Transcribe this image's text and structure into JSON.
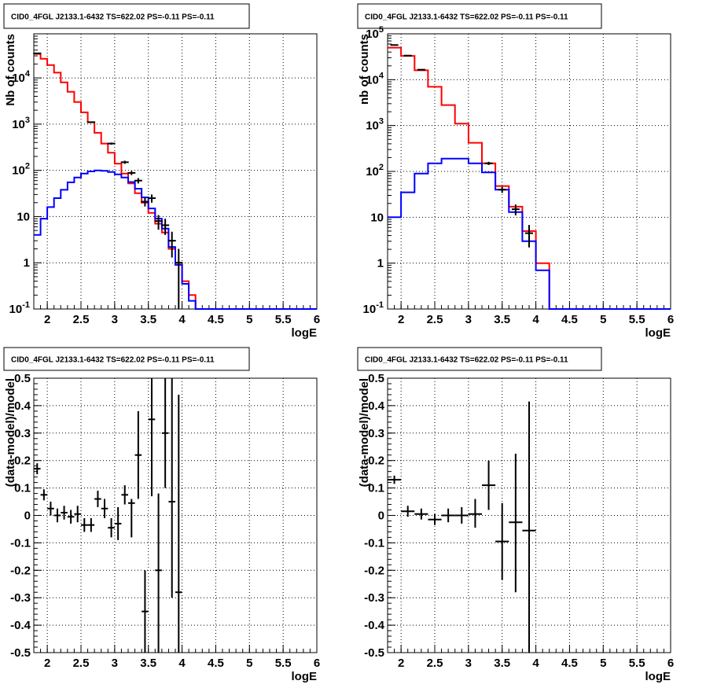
{
  "chart_data": [
    {
      "type": "line",
      "title": "CID0_4FGL J2133.1-6432 TS=622.02 PS=-0.11 PS=-0.11",
      "xlabel": "logE",
      "ylabel": "Nb of counts",
      "xlim": [
        1.8,
        6
      ],
      "ylim": [
        0.1,
        90000
      ],
      "y_scale": "log",
      "grid": true,
      "x_ticks": [
        "2",
        "2.5",
        "3",
        "3.5",
        "4",
        "4.5",
        "5",
        "5.5",
        "6"
      ],
      "y_ticks": [
        {
          "v": 0.1,
          "l": "10^-1"
        },
        {
          "v": 1,
          "l": "1"
        },
        {
          "v": 10,
          "l": "10"
        },
        {
          "v": 100,
          "l": "10^2"
        },
        {
          "v": 1000,
          "l": "10^3"
        },
        {
          "v": 10000,
          "l": "10^4"
        }
      ],
      "bin_edges": [
        1.8,
        1.9,
        2.0,
        2.1,
        2.2,
        2.3,
        2.4,
        2.5,
        2.6,
        2.7,
        2.8,
        2.9,
        3.0,
        3.1,
        3.2,
        3.3,
        3.4,
        3.5,
        3.6,
        3.7,
        3.8,
        3.9,
        4.0,
        4.1,
        4.2,
        4.3,
        4.4,
        4.5,
        4.6,
        4.7,
        4.8,
        4.9,
        5.0,
        5.1,
        5.2,
        5.3,
        5.4,
        5.5,
        5.6,
        5.7,
        5.8,
        5.9,
        6.0
      ],
      "series": [
        {
          "color": "#ff0000",
          "values": [
            33000,
            26000,
            19000,
            13000,
            8000,
            5000,
            3000,
            1800,
            1100,
            650,
            380,
            240,
            140,
            85,
            52,
            32,
            20,
            12,
            7,
            4.5,
            2,
            1,
            0.4,
            0.2,
            0.1,
            0.1,
            0.1,
            0.1,
            0.1,
            0.1,
            0.1,
            0.1,
            0.1,
            0.1,
            0.1,
            0.1,
            0.1,
            0.1,
            0.1,
            0.1,
            0.1,
            0.1
          ]
        },
        {
          "color": "#0000ff",
          "values": [
            4,
            9,
            16,
            25,
            38,
            55,
            70,
            85,
            95,
            100,
            98,
            92,
            82,
            70,
            56,
            40,
            26,
            15,
            9,
            5.5,
            2.2,
            0.9,
            0.35,
            0.15,
            0.1,
            0.1,
            0.1,
            0.1,
            0.1,
            0.1,
            0.1,
            0.1,
            0.1,
            0.1,
            0.1,
            0.1,
            0.1,
            0.1,
            0.1,
            0.1,
            0.1,
            0.1
          ]
        }
      ],
      "data_points": [
        {
          "x": 1.85,
          "y": 34000,
          "elo": 33800,
          "ehi": 34200
        },
        {
          "x": 2.65,
          "y": 1100,
          "elo": 1070,
          "ehi": 1130
        },
        {
          "x": 2.95,
          "y": 380,
          "elo": 360,
          "ehi": 400
        },
        {
          "x": 3.15,
          "y": 150,
          "elo": 138,
          "ehi": 162
        },
        {
          "x": 3.25,
          "y": 88,
          "elo": 79,
          "ehi": 97
        },
        {
          "x": 3.35,
          "y": 60,
          "elo": 52,
          "ehi": 68
        },
        {
          "x": 3.45,
          "y": 21,
          "elo": 16.5,
          "ehi": 25.5
        },
        {
          "x": 3.55,
          "y": 25,
          "elo": 20,
          "ehi": 30
        },
        {
          "x": 3.65,
          "y": 8,
          "elo": 5.2,
          "ehi": 10.8
        },
        {
          "x": 3.75,
          "y": 6.5,
          "elo": 4,
          "ehi": 9
        },
        {
          "x": 3.85,
          "y": 3,
          "elo": 1.3,
          "ehi": 4.7
        },
        {
          "x": 3.95,
          "y": 1,
          "elo": 0.1,
          "ehi": 2
        }
      ]
    },
    {
      "type": "line",
      "title": "CID0_4FGL J2133.1-6432 TS=622.02 PS=-0.11 PS=-0.11",
      "xlabel": "logE",
      "ylabel": "nb of counts",
      "xlim": [
        1.8,
        6
      ],
      "ylim": [
        0.1,
        100000
      ],
      "y_scale": "log",
      "grid": true,
      "x_ticks": [
        "2",
        "2.5",
        "3",
        "3.5",
        "4",
        "4.5",
        "5",
        "5.5",
        "6"
      ],
      "y_ticks": [
        {
          "v": 0.1,
          "l": "10^-1"
        },
        {
          "v": 1,
          "l": "1"
        },
        {
          "v": 10,
          "l": "10"
        },
        {
          "v": 100,
          "l": "10^2"
        },
        {
          "v": 1000,
          "l": "10^3"
        },
        {
          "v": 10000,
          "l": "10^4"
        },
        {
          "v": 100000,
          "l": "10^5"
        }
      ],
      "bin_edges": [
        1.8,
        2.0,
        2.2,
        2.4,
        2.6,
        2.8,
        3.0,
        3.2,
        3.4,
        3.6,
        3.8,
        4.0,
        4.2,
        4.4,
        4.6,
        4.8,
        5.0,
        5.2,
        5.4,
        5.6,
        5.8,
        6.0
      ],
      "series": [
        {
          "color": "#ff0000",
          "values": [
            50000,
            33000,
            16000,
            7000,
            2800,
            1100,
            420,
            150,
            48,
            17,
            5,
            1,
            0.1,
            0.1,
            0.1,
            0.1,
            0.1,
            0.1,
            0.1,
            0.1,
            0.1
          ]
        },
        {
          "color": "#0000ff",
          "values": [
            10,
            35,
            90,
            150,
            190,
            190,
            150,
            95,
            40,
            13,
            3,
            0.7,
            0.1,
            0.1,
            0.1,
            0.1,
            0.1,
            0.1,
            0.1,
            0.1,
            0.1
          ]
        }
      ],
      "data_points": [
        {
          "x": 1.9,
          "y": 57000,
          "elo": 56800,
          "ehi": 57200
        },
        {
          "x": 2.1,
          "y": 33500,
          "elo": 33300,
          "ehi": 33700
        },
        {
          "x": 2.3,
          "y": 16500,
          "elo": 16300,
          "ehi": 16700
        },
        {
          "x": 3.3,
          "y": 150,
          "elo": 138,
          "ehi": 162
        },
        {
          "x": 3.5,
          "y": 40,
          "elo": 34,
          "ehi": 46
        },
        {
          "x": 3.7,
          "y": 15,
          "elo": 11,
          "ehi": 19
        },
        {
          "x": 3.9,
          "y": 4.5,
          "elo": 2.2,
          "ehi": 6.8
        }
      ]
    },
    {
      "type": "scatter",
      "title": "CID0_4FGL J2133.1-6432 TS=622.02 PS=-0.11 PS=-0.11",
      "xlabel": "logE",
      "ylabel": "(data-model)/model",
      "xlim": [
        1.8,
        6
      ],
      "ylim": [
        -0.5,
        0.5
      ],
      "grid": true,
      "x_ticks": [
        "2",
        "2.5",
        "3",
        "3.5",
        "4",
        "4.5",
        "5",
        "5.5",
        "6"
      ],
      "y_ticks": [
        "-0.5",
        "-0.4",
        "-0.3",
        "-0.2",
        "-0.1",
        "0",
        "0.1",
        "0.2",
        "0.3",
        "0.4",
        "0.5"
      ],
      "xerr": 0.05,
      "points": [
        {
          "x": 1.85,
          "y": 0.17,
          "elo": 0.15,
          "ehi": 0.19
        },
        {
          "x": 1.95,
          "y": 0.075,
          "elo": 0.055,
          "ehi": 0.095
        },
        {
          "x": 2.05,
          "y": 0.025,
          "elo": 0.0,
          "ehi": 0.05
        },
        {
          "x": 2.15,
          "y": 0.0,
          "elo": -0.025,
          "ehi": 0.025
        },
        {
          "x": 2.25,
          "y": 0.01,
          "elo": -0.015,
          "ehi": 0.035
        },
        {
          "x": 2.35,
          "y": -0.005,
          "elo": -0.03,
          "ehi": 0.02
        },
        {
          "x": 2.45,
          "y": 0.005,
          "elo": -0.025,
          "ehi": 0.035
        },
        {
          "x": 2.55,
          "y": -0.035,
          "elo": -0.06,
          "ehi": -0.01
        },
        {
          "x": 2.65,
          "y": -0.035,
          "elo": -0.06,
          "ehi": -0.01
        },
        {
          "x": 2.75,
          "y": 0.06,
          "elo": 0.03,
          "ehi": 0.09
        },
        {
          "x": 2.85,
          "y": 0.025,
          "elo": -0.01,
          "ehi": 0.06
        },
        {
          "x": 2.95,
          "y": -0.045,
          "elo": -0.08,
          "ehi": -0.01
        },
        {
          "x": 3.05,
          "y": -0.03,
          "elo": -0.09,
          "ehi": 0.03
        },
        {
          "x": 3.15,
          "y": 0.075,
          "elo": 0.04,
          "ehi": 0.11
        },
        {
          "x": 3.25,
          "y": 0.045,
          "elo": -0.08,
          "ehi": 0.06
        },
        {
          "x": 3.35,
          "y": 0.22,
          "elo": 0.06,
          "ehi": 0.38
        },
        {
          "x": 3.45,
          "y": -0.35,
          "elo": -0.5,
          "ehi": -0.2
        },
        {
          "x": 3.55,
          "y": 0.35,
          "elo": 0.07,
          "ehi": 0.5
        },
        {
          "x": 3.65,
          "y": -0.2,
          "elo": -0.5,
          "ehi": 0.08
        },
        {
          "x": 3.75,
          "y": 0.3,
          "elo": 0.1,
          "ehi": 0.5
        },
        {
          "x": 3.85,
          "y": 0.05,
          "elo": -0.3,
          "ehi": 0.5
        },
        {
          "x": 3.95,
          "y": -0.28,
          "elo": -0.5,
          "ehi": 0.44
        }
      ]
    },
    {
      "type": "scatter",
      "title": "CID0_4FGL J2133.1-6432 TS=622.02 PS=-0.11 PS=-0.11",
      "xlabel": "logE",
      "ylabel": "(data-model)/model",
      "xlim": [
        1.8,
        6
      ],
      "ylim": [
        -0.5,
        0.5
      ],
      "grid": true,
      "x_ticks": [
        "2",
        "2.5",
        "3",
        "3.5",
        "4",
        "4.5",
        "5",
        "5.5",
        "6"
      ],
      "y_ticks": [
        "-0.5",
        "-0.4",
        "-0.3",
        "-0.2",
        "-0.1",
        "0",
        "0.1",
        "0.2",
        "0.3",
        "0.4",
        "0.5"
      ],
      "xerr": 0.1,
      "points": [
        {
          "x": 1.9,
          "y": 0.13,
          "elo": 0.115,
          "ehi": 0.145
        },
        {
          "x": 2.1,
          "y": 0.015,
          "elo": -0.005,
          "ehi": 0.035
        },
        {
          "x": 2.3,
          "y": 0.005,
          "elo": -0.015,
          "ehi": 0.025
        },
        {
          "x": 2.5,
          "y": -0.015,
          "elo": -0.035,
          "ehi": 0.005
        },
        {
          "x": 2.7,
          "y": 0.0,
          "elo": -0.025,
          "ehi": 0.025
        },
        {
          "x": 2.9,
          "y": 0.0,
          "elo": -0.03,
          "ehi": 0.03
        },
        {
          "x": 3.1,
          "y": 0.005,
          "elo": -0.045,
          "ehi": 0.06
        },
        {
          "x": 3.3,
          "y": 0.11,
          "elo": 0.02,
          "ehi": 0.2
        },
        {
          "x": 3.5,
          "y": -0.095,
          "elo": -0.235,
          "ehi": 0.045
        },
        {
          "x": 3.7,
          "y": -0.025,
          "elo": -0.28,
          "ehi": 0.225
        },
        {
          "x": 3.9,
          "y": -0.055,
          "elo": -0.5,
          "ehi": 0.415
        }
      ]
    }
  ]
}
